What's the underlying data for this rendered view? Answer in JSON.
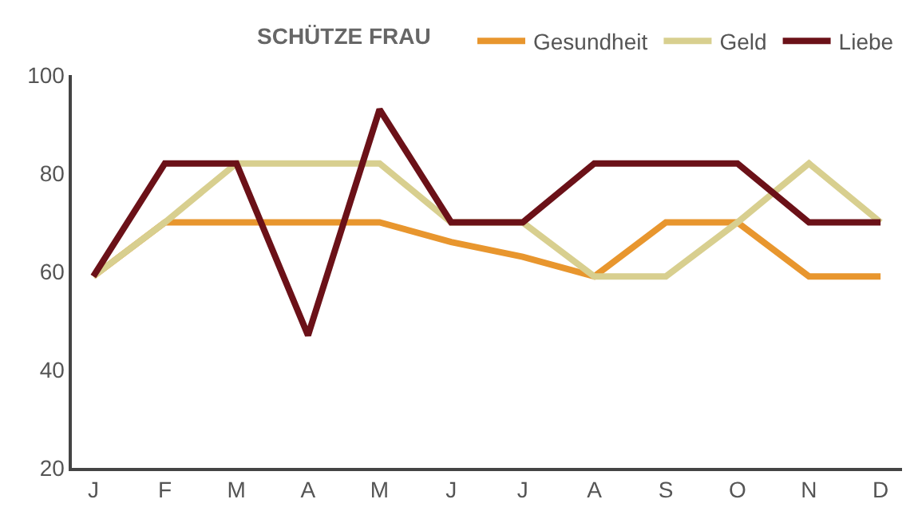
{
  "chart_data": {
    "type": "line",
    "title": "SCHÜTZE FRAU",
    "categories": [
      "J",
      "F",
      "M",
      "A",
      "M",
      "J",
      "J",
      "A",
      "S",
      "O",
      "N",
      "D"
    ],
    "series": [
      {
        "name": "Gesundheit",
        "color": "#e8962e",
        "values": [
          59,
          70,
          70,
          70,
          70,
          66,
          63,
          59,
          70,
          70,
          59,
          59
        ]
      },
      {
        "name": "Geld",
        "color": "#d8cf8f",
        "values": [
          59,
          70,
          82,
          82,
          82,
          70,
          70,
          59,
          59,
          70,
          82,
          70
        ]
      },
      {
        "name": "Liebe",
        "color": "#6b1118",
        "values": [
          59,
          82,
          82,
          47,
          93,
          70,
          70,
          82,
          82,
          82,
          70,
          70
        ]
      }
    ],
    "ylim": [
      20,
      100
    ],
    "yticks": [
      20,
      40,
      60,
      80,
      100
    ],
    "legend": "top right",
    "marker": "none",
    "line_style": "solid"
  }
}
